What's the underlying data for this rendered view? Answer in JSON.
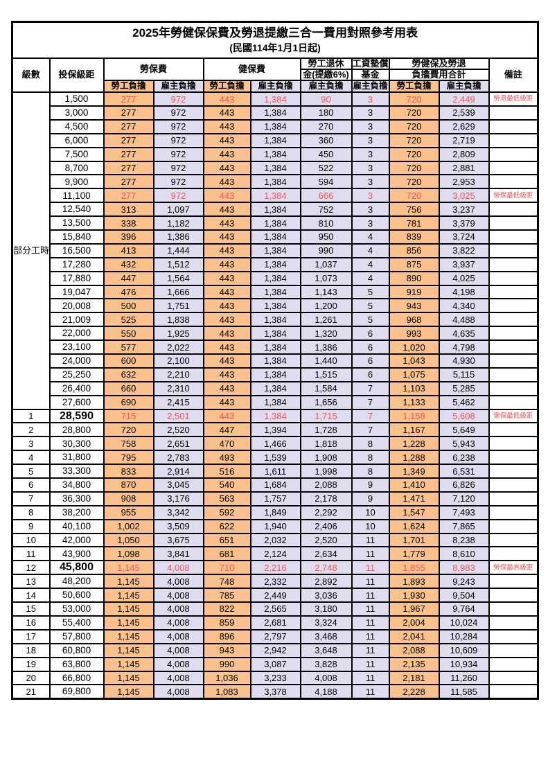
{
  "title": "2025年勞健保保費及勞退提繳三合一費用對照參考用表",
  "subtitle": "(民國114年1月1日起)",
  "colors": {
    "worker_bg": "#FAC18C",
    "employer_bg": "#DFDCF0",
    "highlight_red": "#F75353",
    "border": "#000000"
  },
  "table": {
    "headers": {
      "level": "級數",
      "bracket": "投保級距",
      "labor_ins": "勞保費",
      "health_ins": "健保費",
      "pension_line1": "勞工退休",
      "pension_line2": "金(提繳6%)",
      "wage_fund_line1": "工資墊償",
      "wage_fund_line2": "基金",
      "total_line1": "勞健保及勞退",
      "total_line2": "負擔費用合計",
      "remark": "備註",
      "worker": "勞工負擔",
      "employer": "雇主負擔"
    },
    "group_label": "部分工時",
    "rows": [
      {
        "level": "",
        "bracket": "1,500",
        "values": [
          "277",
          "972",
          "443",
          "1,384",
          "90",
          "3",
          "720",
          "2,449"
        ],
        "remark": "勞退最低級距",
        "red": true,
        "big": false
      },
      {
        "level": "",
        "bracket": "3,000",
        "values": [
          "277",
          "972",
          "443",
          "1,384",
          "180",
          "3",
          "720",
          "2,539"
        ],
        "remark": "",
        "red": false,
        "big": false
      },
      {
        "level": "",
        "bracket": "4,500",
        "values": [
          "277",
          "972",
          "443",
          "1,384",
          "270",
          "3",
          "720",
          "2,629"
        ],
        "remark": "",
        "red": false,
        "big": false
      },
      {
        "level": "",
        "bracket": "6,000",
        "values": [
          "277",
          "972",
          "443",
          "1,384",
          "360",
          "3",
          "720",
          "2,719"
        ],
        "remark": "",
        "red": false,
        "big": false
      },
      {
        "level": "",
        "bracket": "7,500",
        "values": [
          "277",
          "972",
          "443",
          "1,384",
          "450",
          "3",
          "720",
          "2,809"
        ],
        "remark": "",
        "red": false,
        "big": false
      },
      {
        "level": "",
        "bracket": "8,700",
        "values": [
          "277",
          "972",
          "443",
          "1,384",
          "522",
          "3",
          "720",
          "2,881"
        ],
        "remark": "",
        "red": false,
        "big": false
      },
      {
        "level": "",
        "bracket": "9,900",
        "values": [
          "277",
          "972",
          "443",
          "1,384",
          "594",
          "3",
          "720",
          "2,953"
        ],
        "remark": "",
        "red": false,
        "big": false
      },
      {
        "level": "",
        "bracket": "11,100",
        "values": [
          "277",
          "972",
          "443",
          "1,384",
          "666",
          "3",
          "720",
          "3,025"
        ],
        "remark": "勞保最低級距",
        "red": true,
        "big": false
      },
      {
        "level": "",
        "bracket": "12,540",
        "values": [
          "313",
          "1,097",
          "443",
          "1,384",
          "752",
          "3",
          "756",
          "3,237"
        ],
        "remark": "",
        "red": false,
        "big": false
      },
      {
        "level": "",
        "bracket": "13,500",
        "values": [
          "338",
          "1,182",
          "443",
          "1,384",
          "810",
          "3",
          "781",
          "3,379"
        ],
        "remark": "",
        "red": false,
        "big": false
      },
      {
        "level": "",
        "bracket": "15,840",
        "values": [
          "396",
          "1,386",
          "443",
          "1,384",
          "950",
          "4",
          "839",
          "3,724"
        ],
        "remark": "",
        "red": false,
        "big": false
      },
      {
        "level": "",
        "bracket": "16,500",
        "values": [
          "413",
          "1,444",
          "443",
          "1,384",
          "990",
          "4",
          "856",
          "3,822"
        ],
        "remark": "",
        "red": false,
        "big": false
      },
      {
        "level": "",
        "bracket": "17,280",
        "values": [
          "432",
          "1,512",
          "443",
          "1,384",
          "1,037",
          "4",
          "875",
          "3,937"
        ],
        "remark": "",
        "red": false,
        "big": false
      },
      {
        "level": "",
        "bracket": "17,880",
        "values": [
          "447",
          "1,564",
          "443",
          "1,384",
          "1,073",
          "4",
          "890",
          "4,025"
        ],
        "remark": "",
        "red": false,
        "big": false
      },
      {
        "level": "",
        "bracket": "19,047",
        "values": [
          "476",
          "1,666",
          "443",
          "1,384",
          "1,143",
          "5",
          "919",
          "4,198"
        ],
        "remark": "",
        "red": false,
        "big": false
      },
      {
        "level": "",
        "bracket": "20,008",
        "values": [
          "500",
          "1,751",
          "443",
          "1,384",
          "1,200",
          "5",
          "943",
          "4,340"
        ],
        "remark": "",
        "red": false,
        "big": false
      },
      {
        "level": "",
        "bracket": "21,009",
        "values": [
          "525",
          "1,838",
          "443",
          "1,384",
          "1,261",
          "5",
          "968",
          "4,488"
        ],
        "remark": "",
        "red": false,
        "big": false
      },
      {
        "level": "",
        "bracket": "22,000",
        "values": [
          "550",
          "1,925",
          "443",
          "1,384",
          "1,320",
          "6",
          "993",
          "4,635"
        ],
        "remark": "",
        "red": false,
        "big": false
      },
      {
        "level": "",
        "bracket": "23,100",
        "values": [
          "577",
          "2,022",
          "443",
          "1,384",
          "1,386",
          "6",
          "1,020",
          "4,798"
        ],
        "remark": "",
        "red": false,
        "big": false
      },
      {
        "level": "",
        "bracket": "24,000",
        "values": [
          "600",
          "2,100",
          "443",
          "1,384",
          "1,440",
          "6",
          "1,043",
          "4,930"
        ],
        "remark": "",
        "red": false,
        "big": false
      },
      {
        "level": "",
        "bracket": "25,250",
        "values": [
          "632",
          "2,210",
          "443",
          "1,384",
          "1,515",
          "6",
          "1,075",
          "5,115"
        ],
        "remark": "",
        "red": false,
        "big": false
      },
      {
        "level": "",
        "bracket": "26,400",
        "values": [
          "660",
          "2,310",
          "443",
          "1,384",
          "1,584",
          "7",
          "1,103",
          "5,285"
        ],
        "remark": "",
        "red": false,
        "big": false
      },
      {
        "level": "",
        "bracket": "27,600",
        "values": [
          "690",
          "2,415",
          "443",
          "1,384",
          "1,656",
          "7",
          "1,133",
          "5,462"
        ],
        "remark": "",
        "red": false,
        "big": false
      },
      {
        "level": "1",
        "bracket": "28,590",
        "values": [
          "715",
          "2,501",
          "443",
          "1,384",
          "1,715",
          "7",
          "1,158",
          "5,608"
        ],
        "remark": "健保最低級距",
        "red": true,
        "big": true
      },
      {
        "level": "2",
        "bracket": "28,800",
        "values": [
          "720",
          "2,520",
          "447",
          "1,394",
          "1,728",
          "7",
          "1,167",
          "5,649"
        ],
        "remark": "",
        "red": false,
        "big": false
      },
      {
        "level": "3",
        "bracket": "30,300",
        "values": [
          "758",
          "2,651",
          "470",
          "1,466",
          "1,818",
          "8",
          "1,228",
          "5,943"
        ],
        "remark": "",
        "red": false,
        "big": false
      },
      {
        "level": "4",
        "bracket": "31,800",
        "values": [
          "795",
          "2,783",
          "493",
          "1,539",
          "1,908",
          "8",
          "1,288",
          "6,238"
        ],
        "remark": "",
        "red": false,
        "big": false
      },
      {
        "level": "5",
        "bracket": "33,300",
        "values": [
          "833",
          "2,914",
          "516",
          "1,611",
          "1,998",
          "8",
          "1,349",
          "6,531"
        ],
        "remark": "",
        "red": false,
        "big": false
      },
      {
        "level": "6",
        "bracket": "34,800",
        "values": [
          "870",
          "3,045",
          "540",
          "1,684",
          "2,088",
          "9",
          "1,410",
          "6,826"
        ],
        "remark": "",
        "red": false,
        "big": false
      },
      {
        "level": "7",
        "bracket": "36,300",
        "values": [
          "908",
          "3,176",
          "563",
          "1,757",
          "2,178",
          "9",
          "1,471",
          "7,120"
        ],
        "remark": "",
        "red": false,
        "big": false
      },
      {
        "level": "8",
        "bracket": "38,200",
        "values": [
          "955",
          "3,342",
          "592",
          "1,849",
          "2,292",
          "10",
          "1,547",
          "7,493"
        ],
        "remark": "",
        "red": false,
        "big": false
      },
      {
        "level": "9",
        "bracket": "40,100",
        "values": [
          "1,002",
          "3,509",
          "622",
          "1,940",
          "2,406",
          "10",
          "1,624",
          "7,865"
        ],
        "remark": "",
        "red": false,
        "big": false
      },
      {
        "level": "10",
        "bracket": "42,000",
        "values": [
          "1,050",
          "3,675",
          "651",
          "2,032",
          "2,520",
          "11",
          "1,701",
          "8,238"
        ],
        "remark": "",
        "red": false,
        "big": false
      },
      {
        "level": "11",
        "bracket": "43,900",
        "values": [
          "1,098",
          "3,841",
          "681",
          "2,124",
          "2,634",
          "11",
          "1,779",
          "8,610"
        ],
        "remark": "",
        "red": false,
        "big": false
      },
      {
        "level": "12",
        "bracket": "45,800",
        "values": [
          "1,145",
          "4,008",
          "710",
          "2,216",
          "2,748",
          "11",
          "1,855",
          "8,983"
        ],
        "remark": "勞保最高級距",
        "red": true,
        "big": true
      },
      {
        "level": "13",
        "bracket": "48,200",
        "values": [
          "1,145",
          "4,008",
          "748",
          "2,332",
          "2,892",
          "11",
          "1,893",
          "9,243"
        ],
        "remark": "",
        "red": false,
        "big": false
      },
      {
        "level": "14",
        "bracket": "50,600",
        "values": [
          "1,145",
          "4,008",
          "785",
          "2,449",
          "3,036",
          "11",
          "1,930",
          "9,504"
        ],
        "remark": "",
        "red": false,
        "big": false
      },
      {
        "level": "15",
        "bracket": "53,000",
        "values": [
          "1,145",
          "4,008",
          "822",
          "2,565",
          "3,180",
          "11",
          "1,967",
          "9,764"
        ],
        "remark": "",
        "red": false,
        "big": false
      },
      {
        "level": "16",
        "bracket": "55,400",
        "values": [
          "1,145",
          "4,008",
          "859",
          "2,681",
          "3,324",
          "11",
          "2,004",
          "10,024"
        ],
        "remark": "",
        "red": false,
        "big": false
      },
      {
        "level": "17",
        "bracket": "57,800",
        "values": [
          "1,145",
          "4,008",
          "896",
          "2,797",
          "3,468",
          "11",
          "2,041",
          "10,284"
        ],
        "remark": "",
        "red": false,
        "big": false
      },
      {
        "level": "18",
        "bracket": "60,800",
        "values": [
          "1,145",
          "4,008",
          "943",
          "2,942",
          "3,648",
          "11",
          "2,088",
          "10,609"
        ],
        "remark": "",
        "red": false,
        "big": false
      },
      {
        "level": "19",
        "bracket": "63,800",
        "values": [
          "1,145",
          "4,008",
          "990",
          "3,087",
          "3,828",
          "11",
          "2,135",
          "10,934"
        ],
        "remark": "",
        "red": false,
        "big": false
      },
      {
        "level": "20",
        "bracket": "66,800",
        "values": [
          "1,145",
          "4,008",
          "1,036",
          "3,233",
          "4,008",
          "11",
          "2,181",
          "11,260"
        ],
        "remark": "",
        "red": false,
        "big": false
      },
      {
        "level": "21",
        "bracket": "69,800",
        "values": [
          "1,145",
          "4,008",
          "1,083",
          "3,378",
          "4,188",
          "11",
          "2,228",
          "11,585"
        ],
        "remark": "",
        "red": false,
        "big": false
      }
    ]
  }
}
